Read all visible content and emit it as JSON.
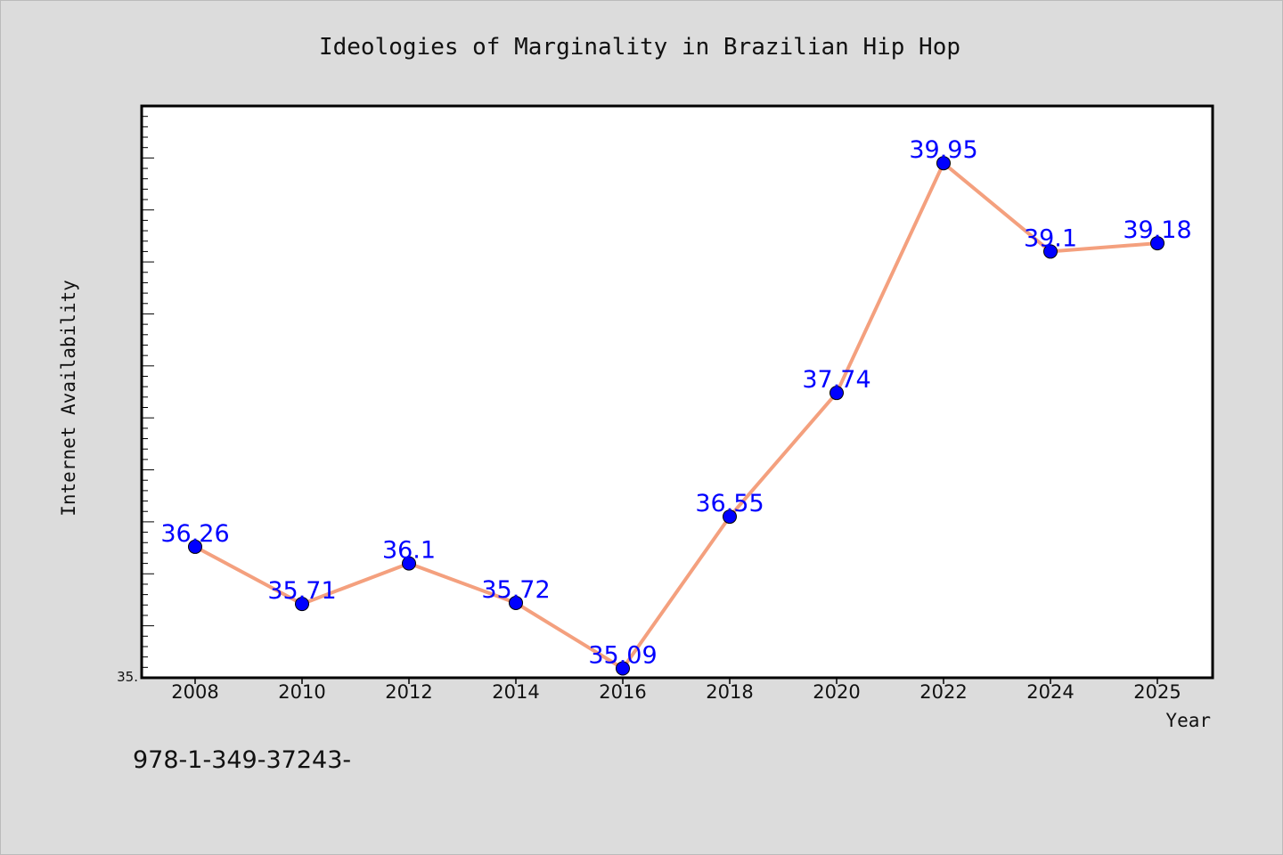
{
  "chart_data": {
    "type": "line",
    "title": "Ideologies of Marginality in Brazilian Hip Hop",
    "xlabel": "Year",
    "ylabel": "Internet Availability",
    "x": [
      "2008",
      "2010",
      "2012",
      "2014",
      "2016",
      "2018",
      "2020",
      "2022",
      "2024",
      "2025"
    ],
    "series": [
      {
        "values": [
          36.26,
          35.71,
          36.1,
          35.72,
          35.09,
          36.55,
          37.74,
          39.95,
          39.1,
          39.18
        ],
        "data_labels": [
          "36.26",
          "35.71",
          "36.1",
          "35.72",
          "35.09",
          "36.55",
          "37.74",
          "39.95",
          "39.1",
          "39.18"
        ]
      }
    ],
    "x_tick_labels": [
      "2008",
      "2010",
      "2012",
      "2014",
      "2016",
      "2018",
      "2020",
      "2022",
      "2024",
      "2025"
    ],
    "y_tick_label": "35.",
    "ylim": [
      35.0,
      40.5
    ],
    "grid": false,
    "line_color": "#f4a07e",
    "marker_color": "#0000ff",
    "label_color": "#0000ff",
    "plot_background": "#ffffff",
    "figure_background": "#dcdcdc"
  },
  "footer_text": "978-1-349-37243-"
}
